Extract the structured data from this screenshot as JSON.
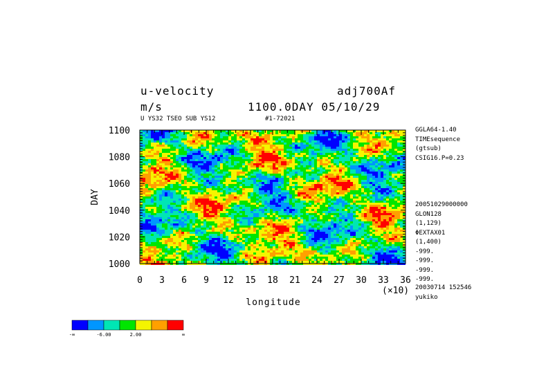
{
  "header": {
    "var_name": "u-velocity",
    "run_name": "adj700Af",
    "units": "m/s",
    "time_label": "1100.0DAY 05/10/29",
    "sub_left": "U YS32 TSEO SUB YS12",
    "sub_right": "#1-72021"
  },
  "right_info": {
    "lines_top": [
      "GGLA64-1.40",
      "TIMEsequence",
      "(gtsub)",
      "CSIG16.P=0.23"
    ],
    "lines_mid": [
      "20051029000000",
      "GLON128",
      "(1,129)",
      "ΦEXTAX01",
      "(1,400)",
      "-999.",
      "-999.",
      "-999.",
      "-999."
    ],
    "lines_bottom": [
      "20030714 152546",
      "yukiko"
    ]
  },
  "chart_data": {
    "type": "heatmap",
    "title": "u-velocity",
    "xlabel": "longitude",
    "ylabel": "DAY",
    "x_multiplier_label": "(×10)",
    "xlim": [
      0,
      36
    ],
    "ylim": [
      1000,
      1100
    ],
    "x_ticks": [
      0,
      3,
      6,
      9,
      12,
      15,
      18,
      21,
      24,
      27,
      30,
      33,
      36
    ],
    "y_ticks": [
      1000,
      1020,
      1040,
      1060,
      1080,
      1100
    ],
    "colorbar": {
      "colors": [
        "#0000ff",
        "#0096ff",
        "#00e6b4",
        "#00e600",
        "#f5f500",
        "#ffa000",
        "#ff0000"
      ],
      "labels": [
        "-∞",
        "-6.00",
        "2.00",
        "∞"
      ]
    },
    "grid": false
  }
}
